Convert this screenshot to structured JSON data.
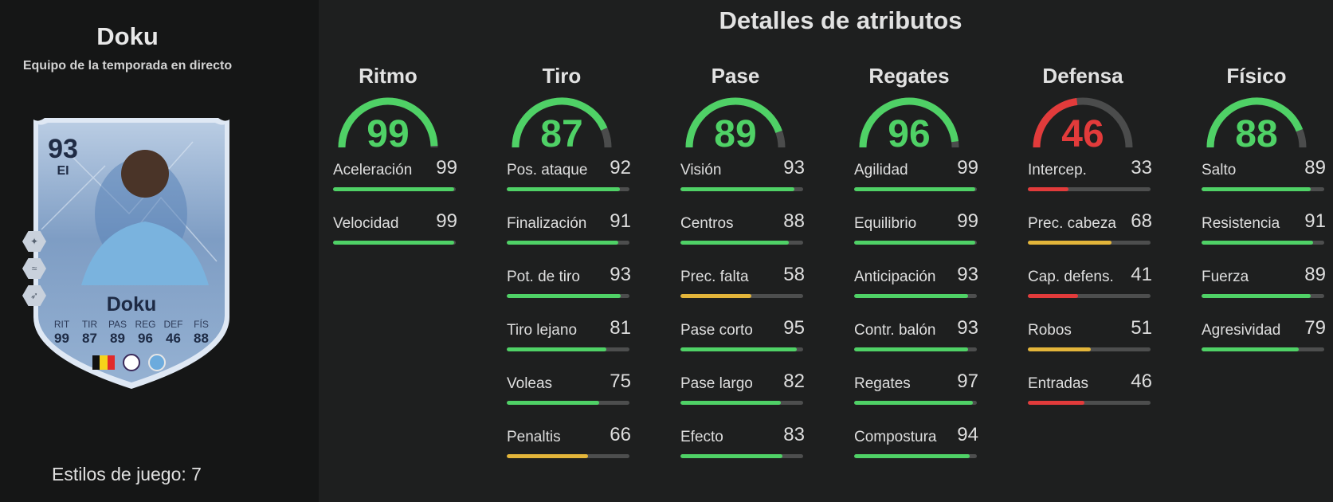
{
  "colors": {
    "green": "#4fd166",
    "yellow": "#e3b53a",
    "red": "#e23b3b",
    "track": "#4d4e4e",
    "gauge_track": "#4b4c4c"
  },
  "player": {
    "name": "Doku",
    "subtitle": "Equipo de la temporada en directo",
    "playstyles": "Estilos de juego: 7"
  },
  "card": {
    "rating": "93",
    "position": "EI",
    "name": "Doku",
    "stats": [
      {
        "label": "RIT",
        "value": "99"
      },
      {
        "label": "TIR",
        "value": "87"
      },
      {
        "label": "PAS",
        "value": "89"
      },
      {
        "label": "REG",
        "value": "96"
      },
      {
        "label": "DEF",
        "value": "46"
      },
      {
        "label": "FÍS",
        "value": "88"
      }
    ],
    "nation_icon": "belgium-flag-icon",
    "league_icon": "premier-league-icon",
    "club_icon": "manchester-city-icon"
  },
  "section_title": "Detalles de atributos",
  "categories": [
    {
      "name": "Ritmo",
      "value": 99,
      "stats": [
        {
          "label": "Aceleración",
          "value": 99
        },
        {
          "label": "Velocidad",
          "value": 99
        }
      ]
    },
    {
      "name": "Tiro",
      "value": 87,
      "stats": [
        {
          "label": "Pos. ataque",
          "value": 92
        },
        {
          "label": "Finalización",
          "value": 91
        },
        {
          "label": "Pot. de tiro",
          "value": 93
        },
        {
          "label": "Tiro lejano",
          "value": 81
        },
        {
          "label": "Voleas",
          "value": 75
        },
        {
          "label": "Penaltis",
          "value": 66
        }
      ]
    },
    {
      "name": "Pase",
      "value": 89,
      "stats": [
        {
          "label": "Visión",
          "value": 93
        },
        {
          "label": "Centros",
          "value": 88
        },
        {
          "label": "Prec. falta",
          "value": 58
        },
        {
          "label": "Pase corto",
          "value": 95
        },
        {
          "label": "Pase largo",
          "value": 82
        },
        {
          "label": "Efecto",
          "value": 83
        }
      ]
    },
    {
      "name": "Regates",
      "value": 96,
      "stats": [
        {
          "label": "Agilidad",
          "value": 99
        },
        {
          "label": "Equilibrio",
          "value": 99
        },
        {
          "label": "Anticipación",
          "value": 93
        },
        {
          "label": "Contr. balón",
          "value": 93
        },
        {
          "label": "Regates",
          "value": 97
        },
        {
          "label": "Compostura",
          "value": 94
        }
      ]
    },
    {
      "name": "Defensa",
      "value": 46,
      "stats": [
        {
          "label": "Intercep.",
          "value": 33
        },
        {
          "label": "Prec. cabeza",
          "value": 68
        },
        {
          "label": "Cap. defens.",
          "value": 41
        },
        {
          "label": "Robos",
          "value": 51
        },
        {
          "label": "Entradas",
          "value": 46
        }
      ]
    },
    {
      "name": "Físico",
      "value": 88,
      "stats": [
        {
          "label": "Salto",
          "value": 89
        },
        {
          "label": "Resistencia",
          "value": 91
        },
        {
          "label": "Fuerza",
          "value": 89
        },
        {
          "label": "Agresividad",
          "value": 79
        }
      ]
    }
  ]
}
